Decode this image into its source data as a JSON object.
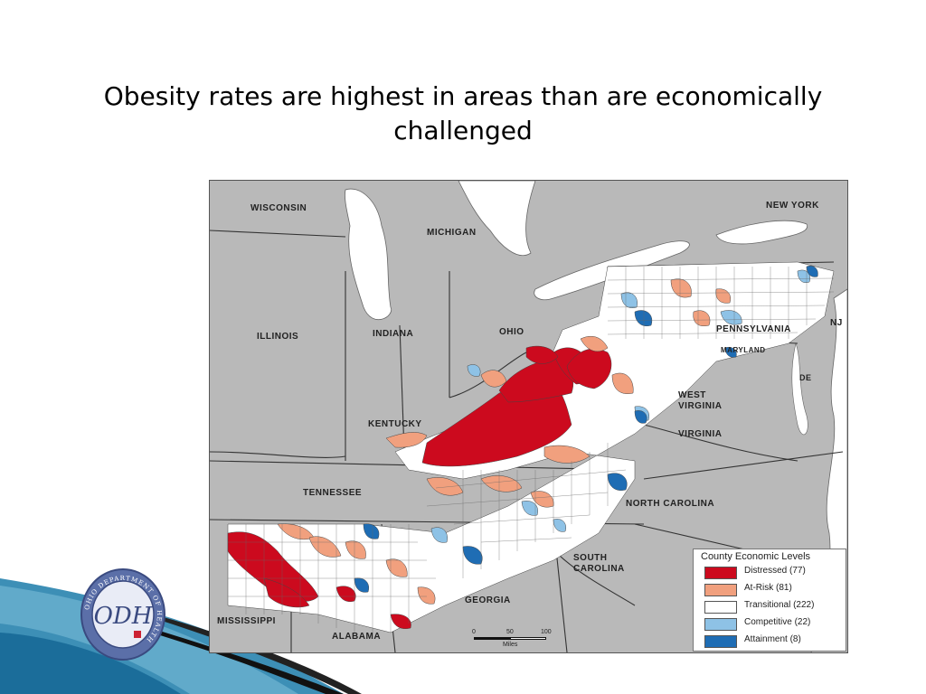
{
  "slide": {
    "title_line1": "Obesity rates are highest in areas than are economically",
    "title_line2": "challenged"
  },
  "map": {
    "state_labels": {
      "wisconsin": "WISCONSIN",
      "michigan": "MICHIGAN",
      "new_york": "NEW YORK",
      "illinois": "ILLINOIS",
      "indiana": "INDIANA",
      "ohio": "OHIO",
      "pennsylvania": "PENNSYLVANIA",
      "nj": "NJ",
      "maryland": "MARYLAND",
      "de": "DE",
      "west_virginia_1": "WEST",
      "west_virginia_2": "VIRGINIA",
      "virginia": "VIRGINIA",
      "kentucky": "KENTUCKY",
      "tennessee": "TENNESSEE",
      "north_carolina": "NORTH CAROLINA",
      "south_carolina_1": "SOUTH",
      "south_carolina_2": "CAROLINA",
      "georgia": "GEORGIA",
      "mississippi": "MISSISSIPPI",
      "alabama": "ALABAMA"
    },
    "colors": {
      "land": "#b9b9b9",
      "water": "#ffffff",
      "distressed": "#cc0a1e",
      "at_risk": "#f1a07e",
      "transitional": "#ffffff",
      "competitive": "#8ec2e6",
      "attainment": "#1f6db4"
    }
  },
  "legend": {
    "title": "County Economic Levels",
    "items": [
      {
        "label": "Distressed (77)",
        "color": "#cc0a1e"
      },
      {
        "label": "At-Risk (81)",
        "color": "#f1a07e"
      },
      {
        "label": "Transitional (222)",
        "color": "#ffffff"
      },
      {
        "label": "Competitive (22)",
        "color": "#8ec2e6"
      },
      {
        "label": "Attainment (8)",
        "color": "#1f6db4"
      }
    ]
  },
  "scale": {
    "tick0": "0",
    "tick1": "50",
    "tick2": "100",
    "unit": "Miles"
  },
  "logo": {
    "text": "ODH",
    "ring_text": "OHIO DEPARTMENT OF HEALTH"
  }
}
